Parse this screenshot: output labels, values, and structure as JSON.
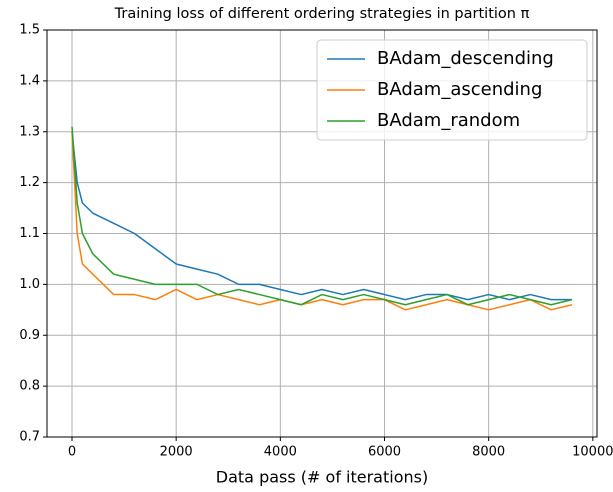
{
  "chart_data": {
    "type": "line",
    "title": "Training loss of different ordering strategies in partition π",
    "x_label": "Data pass (# of iterations)",
    "x": [
      0,
      100,
      200,
      400,
      800,
      1200,
      1600,
      2000,
      2400,
      2800,
      3200,
      3600,
      4000,
      4400,
      4800,
      5200,
      5600,
      6000,
      6400,
      6800,
      7200,
      7600,
      8000,
      8400,
      8800,
      9200,
      9600
    ],
    "series": [
      {
        "name": "BAdam_descending",
        "color": "#1f77b4",
        "values": [
          1.3,
          1.2,
          1.16,
          1.14,
          1.12,
          1.1,
          1.07,
          1.04,
          1.03,
          1.02,
          1.0,
          1.0,
          0.99,
          0.98,
          0.99,
          0.98,
          0.99,
          0.98,
          0.97,
          0.98,
          0.98,
          0.97,
          0.98,
          0.97,
          0.98,
          0.97,
          0.97
        ]
      },
      {
        "name": "BAdam_ascending",
        "color": "#ff7f0e",
        "values": [
          1.3,
          1.1,
          1.04,
          1.02,
          0.98,
          0.98,
          0.97,
          0.99,
          0.97,
          0.98,
          0.97,
          0.96,
          0.97,
          0.96,
          0.97,
          0.96,
          0.97,
          0.97,
          0.95,
          0.96,
          0.97,
          0.96,
          0.95,
          0.96,
          0.97,
          0.95,
          0.96
        ]
      },
      {
        "name": "BAdam_random",
        "color": "#2ca02c",
        "values": [
          1.31,
          1.16,
          1.1,
          1.06,
          1.02,
          1.01,
          1.0,
          1.0,
          1.0,
          0.98,
          0.99,
          0.98,
          0.97,
          0.96,
          0.98,
          0.97,
          0.98,
          0.97,
          0.96,
          0.97,
          0.98,
          0.96,
          0.97,
          0.98,
          0.97,
          0.96,
          0.97
        ]
      }
    ],
    "xlim": [
      -480,
      10080
    ],
    "ylim": [
      0.7,
      1.5
    ],
    "xticks": [
      0,
      2000,
      4000,
      6000,
      8000,
      10000
    ],
    "yticks": [
      0.7,
      0.8,
      0.9,
      {
        "value": 1,
        "label": "1.0"
      },
      1.1,
      1.2,
      1.3,
      1.4,
      1.5
    ],
    "grid": true,
    "legend": "upper right"
  }
}
